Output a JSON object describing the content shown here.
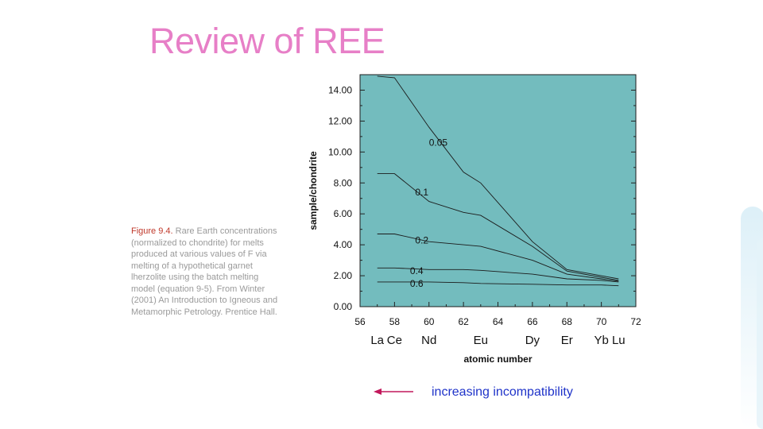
{
  "slide": {
    "title": "Review of REE",
    "caption_fig": "Figure 9.4.",
    "caption_text": "Rare Earth concentrations (normalized to chondrite) for melts produced at various values of F via melting of a hypothetical garnet lherzolite using the batch melting model (equation 9-5). From Winter (2001) An Introduction to Igneous and Metamorphic Petrology. Prentice Hall.",
    "arrow_label": "increasing incompatibility",
    "colors": {
      "title": "#e77fc7",
      "plot_bg": "#73bcbe",
      "arrow": "#c2185b",
      "arrow_text": "#1f33c9"
    }
  },
  "chart_data": {
    "type": "line",
    "title": "",
    "xlabel": "atomic number",
    "ylabel": "sample/chondrite",
    "xlim": [
      56,
      72
    ],
    "ylim": [
      0,
      15
    ],
    "x_ticks": [
      56,
      58,
      60,
      62,
      64,
      66,
      68,
      70,
      72
    ],
    "y_ticks": [
      "0.00",
      "2.00",
      "4.00",
      "6.00",
      "8.00",
      "10.00",
      "12.00",
      "14.00"
    ],
    "elements": [
      {
        "symbol": "La",
        "z": 57
      },
      {
        "symbol": "Ce",
        "z": 58
      },
      {
        "symbol": "Nd",
        "z": 60
      },
      {
        "symbol": "Eu",
        "z": 63
      },
      {
        "symbol": "Dy",
        "z": 66
      },
      {
        "symbol": "Er",
        "z": 68
      },
      {
        "symbol": "Yb",
        "z": 70
      },
      {
        "symbol": "Lu",
        "z": 71
      }
    ],
    "series": [
      {
        "name": "0.05",
        "label_at": [
          60,
          10.6
        ],
        "points": [
          [
            57,
            14.9
          ],
          [
            58,
            14.8
          ],
          [
            60,
            11.6
          ],
          [
            62,
            8.7
          ],
          [
            63,
            8.0
          ],
          [
            66,
            4.2
          ],
          [
            68,
            2.4
          ],
          [
            70,
            2.0
          ],
          [
            71,
            1.8
          ]
        ]
      },
      {
        "name": "0.1",
        "label_at": [
          59.2,
          7.4
        ],
        "points": [
          [
            57,
            8.6
          ],
          [
            58,
            8.6
          ],
          [
            60,
            6.8
          ],
          [
            62,
            6.1
          ],
          [
            63,
            5.9
          ],
          [
            66,
            3.9
          ],
          [
            68,
            2.3
          ],
          [
            70,
            1.9
          ],
          [
            71,
            1.7
          ]
        ]
      },
      {
        "name": "0.2",
        "label_at": [
          59.2,
          4.3
        ],
        "points": [
          [
            57,
            4.7
          ],
          [
            58,
            4.7
          ],
          [
            60,
            4.2
          ],
          [
            62,
            4.0
          ],
          [
            63,
            3.9
          ],
          [
            66,
            3.0
          ],
          [
            68,
            2.1
          ],
          [
            70,
            1.8
          ],
          [
            71,
            1.65
          ]
        ]
      },
      {
        "name": "0.4",
        "label_at": [
          58.9,
          2.3
        ],
        "points": [
          [
            57,
            2.5
          ],
          [
            58,
            2.5
          ],
          [
            60,
            2.4
          ],
          [
            62,
            2.4
          ],
          [
            63,
            2.35
          ],
          [
            66,
            2.1
          ],
          [
            68,
            1.8
          ],
          [
            70,
            1.7
          ],
          [
            71,
            1.6
          ]
        ]
      },
      {
        "name": "0.6",
        "label_at": [
          58.9,
          1.5
        ],
        "points": [
          [
            57,
            1.6
          ],
          [
            58,
            1.6
          ],
          [
            60,
            1.6
          ],
          [
            62,
            1.55
          ],
          [
            63,
            1.5
          ],
          [
            66,
            1.45
          ],
          [
            68,
            1.4
          ],
          [
            70,
            1.4
          ],
          [
            71,
            1.35
          ]
        ]
      }
    ]
  }
}
